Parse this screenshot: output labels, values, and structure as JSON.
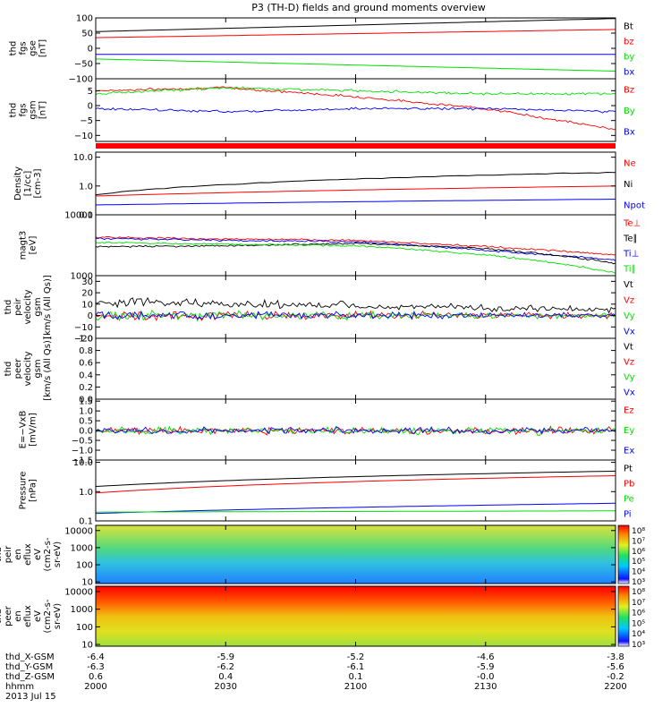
{
  "title": "P3 (TH-D) fields and ground moments overview",
  "colors": {
    "black": "#000000",
    "red": "#ff0000",
    "green": "#00e000",
    "blue": "#0000ff",
    "band": "#ff0000",
    "frame": "#000000"
  },
  "panels": [
    {
      "id": "fgs-gse",
      "ylabel": [
        "thd",
        "fgs",
        "gse",
        "[nT]"
      ],
      "scale": "linear",
      "ylim": [
        -100,
        100
      ],
      "ticks": [
        100,
        50,
        0,
        -50,
        -100
      ],
      "tick_labels": [
        "100",
        "50",
        "0",
        "−50",
        "−100"
      ],
      "legend": [
        {
          "label": "Bt",
          "color": "black"
        },
        {
          "label": "bz",
          "color": "red"
        },
        {
          "label": "by",
          "color": "green"
        },
        {
          "label": "bx",
          "color": "blue"
        }
      ]
    },
    {
      "id": "fgs-gsm",
      "ylabel": [
        "thd",
        "fgs",
        "gsm",
        "[nT]"
      ],
      "scale": "linear",
      "ylim": [
        -12,
        9
      ],
      "ticks": [
        5,
        0,
        -5,
        -10
      ],
      "tick_labels": [
        "5",
        "0",
        "−5",
        "−10"
      ],
      "legend": [
        {
          "label": "Bz",
          "color": "red"
        },
        {
          "label": "By",
          "color": "green"
        },
        {
          "label": "Bx",
          "color": "blue"
        }
      ]
    },
    {
      "id": "density",
      "ylabel": [
        "Density",
        "[1/cc]",
        "[cm-3]"
      ],
      "scale": "log",
      "ylim": [
        0.1,
        15
      ],
      "ticks": [
        10,
        1,
        0.1
      ],
      "tick_labels": [
        "10.0",
        "1.0",
        "0.1"
      ],
      "legend": [
        {
          "label": "Ne",
          "color": "red"
        },
        {
          "label": "Ni",
          "color": "black"
        },
        {
          "label": "Npot",
          "color": "blue"
        }
      ]
    },
    {
      "id": "temperature",
      "ylabel": [
        "magt3",
        "[eV]"
      ],
      "scale": "log",
      "ylim": [
        1000,
        10000
      ],
      "ticks": [
        10000,
        1000
      ],
      "tick_labels": [
        "10000",
        "1000"
      ],
      "legend": [
        {
          "label": "Te⊥",
          "color": "red"
        },
        {
          "label": "Te∥",
          "color": "black"
        },
        {
          "label": "Ti⊥",
          "color": "blue"
        },
        {
          "label": "Ti∥",
          "color": "green"
        }
      ]
    },
    {
      "id": "peir-velocity",
      "ylabel": [
        "thd",
        "peir",
        "velocity",
        "gsm",
        "[km/s (All Qs)]"
      ],
      "scale": "linear",
      "ylim": [
        -20,
        35
      ],
      "ticks": [
        30,
        20,
        10,
        0,
        -10,
        -20
      ],
      "tick_labels": [
        "30",
        "20",
        "10",
        "0",
        "−10",
        "−20"
      ],
      "legend": [
        {
          "label": "Vt",
          "color": "black"
        },
        {
          "label": "Vz",
          "color": "red"
        },
        {
          "label": "Vy",
          "color": "green"
        },
        {
          "label": "Vx",
          "color": "blue"
        }
      ]
    },
    {
      "id": "peer-velocity",
      "ylabel": [
        "thd",
        "peer",
        "velocity",
        "gsm",
        "[km/s (All Qs)]"
      ],
      "scale": "linear",
      "ylim": [
        0,
        1
      ],
      "ticks": [
        1.0,
        0.8,
        0.6,
        0.4,
        0.2,
        0.0
      ],
      "tick_labels": [
        "1.0",
        "0.8",
        "0.6",
        "0.4",
        "0.2",
        "0.0"
      ],
      "legend": [
        {
          "label": "Vt",
          "color": "black"
        },
        {
          "label": "Vz",
          "color": "red"
        },
        {
          "label": "Vy",
          "color": "green"
        },
        {
          "label": "Vx",
          "color": "blue"
        }
      ]
    },
    {
      "id": "efield",
      "ylabel": [
        "E=−VxB",
        "[mV/m]"
      ],
      "scale": "linear",
      "ylim": [
        -1.5,
        1.6
      ],
      "ticks": [
        1.5,
        1.0,
        0.5,
        0.0,
        -0.5,
        -1.0,
        -1.5
      ],
      "tick_labels": [
        "1.5",
        "1.0",
        "0.5",
        "0.0",
        "−0.5",
        "−1.0",
        "−1.5"
      ],
      "legend": [
        {
          "label": "Ez",
          "color": "red"
        },
        {
          "label": "Ey",
          "color": "green"
        },
        {
          "label": "Ex",
          "color": "blue"
        }
      ]
    },
    {
      "id": "pressure",
      "ylabel": [
        "Pressure",
        "[nPa]"
      ],
      "scale": "log",
      "ylim": [
        0.1,
        12
      ],
      "ticks": [
        10,
        1,
        0.1
      ],
      "tick_labels": [
        "10.0",
        "1.0",
        "0.1"
      ],
      "legend": [
        {
          "label": "Pt",
          "color": "black"
        },
        {
          "label": "Pb",
          "color": "red"
        },
        {
          "label": "Pe",
          "color": "green"
        },
        {
          "label": "Pi",
          "color": "blue"
        }
      ]
    },
    {
      "id": "peir-spec",
      "ylabel": [
        "thd",
        "peir",
        "en",
        "eflux",
        "eV",
        "(cm2-s-",
        "sr-eV)"
      ],
      "scale": "log",
      "ylim": [
        8,
        20000
      ],
      "ticks": [
        10000,
        1000,
        100,
        10
      ],
      "tick_labels": [
        "10000",
        "1000",
        "100",
        "10"
      ],
      "colorbar": [
        "10⁸",
        "10⁷",
        "10⁶",
        "10⁵",
        "10⁴",
        "10³"
      ]
    },
    {
      "id": "peer-spec",
      "ylabel": [
        "thd",
        "peer",
        "en",
        "eflux",
        "eV",
        "(cm2-s-",
        "sr-eV)"
      ],
      "scale": "log",
      "ylim": [
        8,
        20000
      ],
      "ticks": [
        10000,
        1000,
        100,
        10
      ],
      "tick_labels": [
        "10000",
        "1000",
        "100",
        "10"
      ],
      "colorbar": [
        "10⁸",
        "10⁷",
        "10⁶",
        "10⁵",
        "10⁴",
        "10³"
      ]
    }
  ],
  "xaxis": {
    "labels": [
      "thd_X-GSM",
      "thd_Y-GSM",
      "thd_Z-GSM",
      "hhmm",
      "2013 Jul 15"
    ],
    "ticks": [
      {
        "X": "-6.4",
        "Y": "-6.3",
        "Z": "0.6",
        "hhmm": "2000"
      },
      {
        "X": "-5.9",
        "Y": "-6.2",
        "Z": "0.4",
        "hhmm": "2030"
      },
      {
        "X": "-5.2",
        "Y": "-6.1",
        "Z": "0.1",
        "hhmm": "2100"
      },
      {
        "X": "-4.6",
        "Y": "-5.9",
        "Z": "-0.0",
        "hhmm": "2130"
      },
      {
        "X": "-3.8",
        "Y": "-5.6",
        "Z": "-0.2",
        "hhmm": "2200"
      }
    ]
  },
  "chart_data": [
    {
      "type": "line",
      "panel": "fgs-gse",
      "x_hhmm": [
        "2000",
        "2200"
      ],
      "ylim": [
        -100,
        100
      ],
      "series": [
        {
          "name": "Bt",
          "color": "black",
          "values": [
            55,
            98
          ]
        },
        {
          "name": "bz",
          "color": "red",
          "values": [
            35,
            62
          ]
        },
        {
          "name": "by",
          "color": "green",
          "values": [
            -35,
            -75
          ]
        },
        {
          "name": "bx",
          "color": "blue",
          "values": [
            -20,
            -20
          ]
        }
      ]
    },
    {
      "type": "line",
      "panel": "fgs-gsm",
      "x_hhmm": [
        "2000",
        "2030",
        "2100",
        "2130",
        "2200"
      ],
      "ylim": [
        -12,
        9
      ],
      "series": [
        {
          "name": "Bz",
          "color": "red",
          "values": [
            5,
            6,
            3,
            -1,
            -8
          ]
        },
        {
          "name": "By",
          "color": "green",
          "values": [
            4,
            6,
            5,
            4,
            4
          ]
        },
        {
          "name": "Bx",
          "color": "blue",
          "values": [
            -1,
            -2,
            -1,
            -1,
            -2
          ]
        }
      ]
    },
    {
      "type": "line",
      "panel": "density",
      "x_hhmm": [
        "2000",
        "2200"
      ],
      "ylim": [
        0.1,
        15
      ],
      "series": [
        {
          "name": "Ni",
          "color": "black",
          "values": [
            0.5,
            3
          ]
        },
        {
          "name": "Ne",
          "color": "red",
          "values": [
            0.45,
            1.0
          ]
        },
        {
          "name": "Npot",
          "color": "blue",
          "values": [
            0.22,
            0.35
          ]
        }
      ]
    },
    {
      "type": "line",
      "panel": "temperature",
      "x_hhmm": [
        "2000",
        "2030",
        "2100",
        "2130",
        "2200"
      ],
      "ylim": [
        1000,
        10000
      ],
      "series": [
        {
          "name": "Te⊥",
          "color": "red",
          "values": [
            4300,
            4000,
            3800,
            3000,
            2200
          ]
        },
        {
          "name": "Ti⊥",
          "color": "blue",
          "values": [
            4100,
            3800,
            3600,
            2600,
            1800
          ]
        },
        {
          "name": "Te∥",
          "color": "black",
          "values": [
            3000,
            3100,
            3400,
            2800,
            1600
          ]
        },
        {
          "name": "Ti∥",
          "color": "green",
          "values": [
            3500,
            3300,
            3100,
            2200,
            1100
          ]
        }
      ]
    },
    {
      "type": "line",
      "panel": "peir-velocity",
      "x_hhmm": [
        "2000",
        "2200"
      ],
      "ylim": [
        -20,
        35
      ],
      "series": [
        {
          "name": "Vt",
          "color": "black",
          "values": [
            12,
            5
          ]
        },
        {
          "name": "Vz",
          "color": "red",
          "values": [
            0,
            0
          ]
        },
        {
          "name": "Vy",
          "color": "green",
          "values": [
            0,
            0
          ]
        },
        {
          "name": "Vx",
          "color": "blue",
          "values": [
            0,
            0
          ]
        }
      ]
    },
    {
      "type": "line",
      "panel": "efield",
      "x_hhmm": [
        "2000",
        "2200"
      ],
      "ylim": [
        -1.5,
        1.6
      ],
      "series": [
        {
          "name": "Ez",
          "color": "red",
          "values": [
            0,
            0
          ]
        },
        {
          "name": "Ey",
          "color": "green",
          "values": [
            0,
            0
          ]
        },
        {
          "name": "Ex",
          "color": "blue",
          "values": [
            0,
            0
          ]
        }
      ]
    },
    {
      "type": "line",
      "panel": "pressure",
      "x_hhmm": [
        "2000",
        "2200"
      ],
      "ylim": [
        0.1,
        12
      ],
      "series": [
        {
          "name": "Pt",
          "color": "black",
          "values": [
            1.5,
            5
          ]
        },
        {
          "name": "Pb",
          "color": "red",
          "values": [
            0.9,
            3.5
          ]
        },
        {
          "name": "Pi",
          "color": "blue",
          "values": [
            0.18,
            0.4
          ]
        },
        {
          "name": "Pe",
          "color": "green",
          "values": [
            0.2,
            0.22
          ]
        }
      ]
    },
    {
      "type": "heatmap",
      "panel": "peir-spec",
      "ylim": [
        8,
        20000
      ],
      "colorbar_range": [
        "10³",
        "10⁸"
      ]
    },
    {
      "type": "heatmap",
      "panel": "peer-spec",
      "ylim": [
        8,
        20000
      ],
      "colorbar_range": [
        "10³",
        "10⁸"
      ]
    }
  ]
}
